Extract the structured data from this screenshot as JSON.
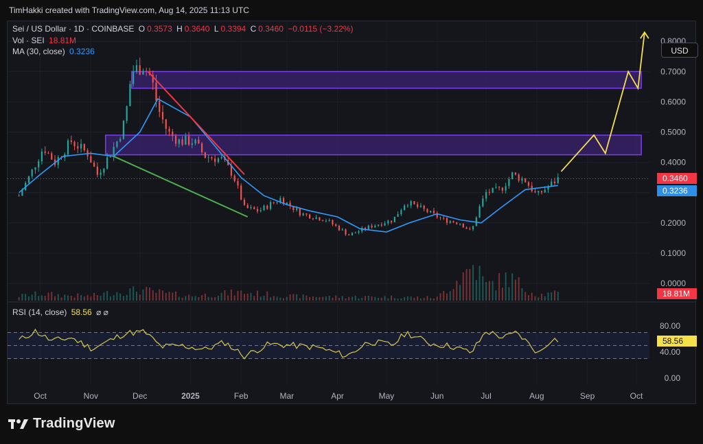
{
  "header": {
    "caption": "TimHakki created with TradingView.com, Aug 14, 2025 11:13 UTC"
  },
  "legend": {
    "symbol": "Sei / US Dollar · 1D · COINBASE",
    "open_label": "O",
    "open": "0.3573",
    "high_label": "H",
    "high": "0.3640",
    "low_label": "L",
    "low": "0.3394",
    "close_label": "C",
    "close": "0.3460",
    "change": "−0.0115 (−3.22%)",
    "vol_label": "Vol · SEI",
    "vol_value": "18.81M",
    "ma_label": "MA (30, close)",
    "ma_value": "0.3236",
    "rsi_label": "RSI (14, close)",
    "rsi_value": "58.56",
    "rsi_icons": "⌀ ⌀"
  },
  "currency_button": "USD",
  "price_tags": {
    "last_price": "0.3460",
    "ma": "0.3236",
    "volume": "18.81M",
    "rsi": "58.56"
  },
  "brand": "TradingView",
  "colors": {
    "up": "#26a69a",
    "down": "#ef5350",
    "ma": "#2e9bff",
    "rsi": "#d8c94a",
    "zone_fill": "#3b2370",
    "zone_stroke": "#7b3ff2",
    "forecast": "#f6e04a",
    "trend_red": "#f23645",
    "trend_green": "#4caf50"
  },
  "chart_data": [
    {
      "type": "candlestick",
      "title": "Sei / US Dollar · 1D · COINBASE",
      "x_axis_ticks": [
        "Oct",
        "Nov",
        "Dec",
        "2025",
        "Feb",
        "Mar",
        "Apr",
        "May",
        "Jun",
        "Jul",
        "Aug",
        "Sep",
        "Oct"
      ],
      "y_axis_ticks": [
        0.0,
        0.1,
        0.2,
        0.3,
        0.4,
        0.5,
        0.6,
        0.7,
        0.8
      ],
      "y_tick_labels": [
        "0.0000",
        "0.1000",
        "0.2000",
        "0.3000",
        "0.4000",
        "0.5000",
        "0.6000",
        "0.7000",
        "0.8000"
      ],
      "ylim": [
        0.0,
        0.8
      ],
      "close_path": [
        {
          "x": "2024-09-18",
          "y": 0.29
        },
        {
          "x": "2024-09-25",
          "y": 0.36
        },
        {
          "x": "2024-10-03",
          "y": 0.45
        },
        {
          "x": "2024-10-10",
          "y": 0.4
        },
        {
          "x": "2024-10-20",
          "y": 0.47
        },
        {
          "x": "2024-10-30",
          "y": 0.43
        },
        {
          "x": "2024-11-05",
          "y": 0.36
        },
        {
          "x": "2024-11-12",
          "y": 0.42
        },
        {
          "x": "2024-11-18",
          "y": 0.48
        },
        {
          "x": "2024-11-22",
          "y": 0.54
        },
        {
          "x": "2024-11-26",
          "y": 0.7
        },
        {
          "x": "2024-12-03",
          "y": 0.72
        },
        {
          "x": "2024-12-08",
          "y": 0.68
        },
        {
          "x": "2024-12-12",
          "y": 0.58
        },
        {
          "x": "2024-12-18",
          "y": 0.5
        },
        {
          "x": "2024-12-25",
          "y": 0.47
        },
        {
          "x": "2025-01-03",
          "y": 0.47
        },
        {
          "x": "2025-01-10",
          "y": 0.42
        },
        {
          "x": "2025-01-20",
          "y": 0.41
        },
        {
          "x": "2025-01-27",
          "y": 0.36
        },
        {
          "x": "2025-02-03",
          "y": 0.25
        },
        {
          "x": "2025-02-12",
          "y": 0.24
        },
        {
          "x": "2025-02-25",
          "y": 0.28
        },
        {
          "x": "2025-03-10",
          "y": 0.23
        },
        {
          "x": "2025-03-25",
          "y": 0.21
        },
        {
          "x": "2025-04-08",
          "y": 0.16
        },
        {
          "x": "2025-04-22",
          "y": 0.19
        },
        {
          "x": "2025-05-05",
          "y": 0.21
        },
        {
          "x": "2025-05-13",
          "y": 0.27
        },
        {
          "x": "2025-05-25",
          "y": 0.24
        },
        {
          "x": "2025-06-05",
          "y": 0.21
        },
        {
          "x": "2025-06-15",
          "y": 0.2
        },
        {
          "x": "2025-06-22",
          "y": 0.17
        },
        {
          "x": "2025-06-26",
          "y": 0.24
        },
        {
          "x": "2025-07-01",
          "y": 0.3
        },
        {
          "x": "2025-07-10",
          "y": 0.31
        },
        {
          "x": "2025-07-17",
          "y": 0.36
        },
        {
          "x": "2025-07-25",
          "y": 0.34
        },
        {
          "x": "2025-08-01",
          "y": 0.29
        },
        {
          "x": "2025-08-08",
          "y": 0.32
        },
        {
          "x": "2025-08-14",
          "y": 0.346
        }
      ],
      "series": [
        {
          "name": "MA (30, close)",
          "values": [
            {
              "x": "2024-09-18",
              "y": 0.3
            },
            {
              "x": "2024-10-01",
              "y": 0.36
            },
            {
              "x": "2024-10-15",
              "y": 0.42
            },
            {
              "x": "2024-11-01",
              "y": 0.43
            },
            {
              "x": "2024-11-15",
              "y": 0.42
            },
            {
              "x": "2024-12-01",
              "y": 0.5
            },
            {
              "x": "2024-12-12",
              "y": 0.61
            },
            {
              "x": "2025-01-01",
              "y": 0.55
            },
            {
              "x": "2025-01-15",
              "y": 0.46
            },
            {
              "x": "2025-02-01",
              "y": 0.35
            },
            {
              "x": "2025-02-15",
              "y": 0.29
            },
            {
              "x": "2025-03-01",
              "y": 0.26
            },
            {
              "x": "2025-03-15",
              "y": 0.24
            },
            {
              "x": "2025-04-01",
              "y": 0.22
            },
            {
              "x": "2025-04-15",
              "y": 0.18
            },
            {
              "x": "2025-05-01",
              "y": 0.17
            },
            {
              "x": "2025-05-15",
              "y": 0.2
            },
            {
              "x": "2025-06-01",
              "y": 0.23
            },
            {
              "x": "2025-06-15",
              "y": 0.21
            },
            {
              "x": "2025-06-28",
              "y": 0.2
            },
            {
              "x": "2025-07-10",
              "y": 0.25
            },
            {
              "x": "2025-07-25",
              "y": 0.31
            },
            {
              "x": "2025-08-14",
              "y": 0.3236
            }
          ]
        },
        {
          "name": "Vol · SEI",
          "values": [
            {
              "x": "2024-09-18",
              "y": 12
            },
            {
              "x": "2024-10-01",
              "y": 18
            },
            {
              "x": "2024-10-15",
              "y": 14
            },
            {
              "x": "2024-11-01",
              "y": 12
            },
            {
              "x": "2024-11-15",
              "y": 22
            },
            {
              "x": "2024-12-01",
              "y": 28
            },
            {
              "x": "2024-12-15",
              "y": 20
            },
            {
              "x": "2025-01-01",
              "y": 12
            },
            {
              "x": "2025-02-01",
              "y": 22
            },
            {
              "x": "2025-03-01",
              "y": 12
            },
            {
              "x": "2025-04-01",
              "y": 10
            },
            {
              "x": "2025-05-01",
              "y": 10
            },
            {
              "x": "2025-06-01",
              "y": 8
            },
            {
              "x": "2025-06-24",
              "y": 95
            },
            {
              "x": "2025-07-01",
              "y": 40
            },
            {
              "x": "2025-07-15",
              "y": 60
            },
            {
              "x": "2025-08-01",
              "y": 15
            },
            {
              "x": "2025-08-14",
              "y": 18.81
            }
          ]
        }
      ],
      "zones": [
        {
          "from": 0.645,
          "to": 0.7,
          "x_from": "2024-11-26",
          "x_to": "2025-10-04"
        },
        {
          "from": 0.425,
          "to": 0.49,
          "x_from": "2024-11-10",
          "x_to": "2025-10-04"
        }
      ],
      "trendlines": [
        {
          "color": "red",
          "from": {
            "x": "2024-12-06",
            "y": 0.7
          },
          "to": {
            "x": "2025-02-03",
            "y": 0.36
          }
        },
        {
          "color": "green",
          "from": {
            "x": "2024-11-15",
            "y": 0.42
          },
          "to": {
            "x": "2025-02-05",
            "y": 0.22
          }
        }
      ],
      "forecast_path": [
        {
          "x": "2025-08-16",
          "y": 0.37
        },
        {
          "x": "2025-09-05",
          "y": 0.49
        },
        {
          "x": "2025-09-12",
          "y": 0.43
        },
        {
          "x": "2025-09-26",
          "y": 0.7
        },
        {
          "x": "2025-10-02",
          "y": 0.645
        },
        {
          "x": "2025-10-06",
          "y": 0.83
        }
      ],
      "last_price": 0.346,
      "ma_last": 0.3236,
      "volume_last": "18.81M"
    },
    {
      "type": "line",
      "title": "RSI (14, close)",
      "y_axis_ticks": [
        0,
        40,
        80
      ],
      "y_tick_labels": [
        "0.00",
        "40.00",
        "80.00"
      ],
      "ylim": [
        0,
        100
      ],
      "bands": [
        30,
        50,
        70
      ],
      "series": [
        {
          "name": "RSI (14, close)",
          "values": [
            {
              "x": "2024-09-18",
              "y": 58
            },
            {
              "x": "2024-09-28",
              "y": 72
            },
            {
              "x": "2024-10-08",
              "y": 57
            },
            {
              "x": "2024-10-20",
              "y": 62
            },
            {
              "x": "2024-11-02",
              "y": 45
            },
            {
              "x": "2024-11-12",
              "y": 57
            },
            {
              "x": "2024-11-22",
              "y": 69
            },
            {
              "x": "2024-12-04",
              "y": 71
            },
            {
              "x": "2024-12-14",
              "y": 48
            },
            {
              "x": "2024-12-26",
              "y": 50
            },
            {
              "x": "2025-01-10",
              "y": 44
            },
            {
              "x": "2025-01-22",
              "y": 55
            },
            {
              "x": "2025-02-03",
              "y": 34
            },
            {
              "x": "2025-02-18",
              "y": 52
            },
            {
              "x": "2025-03-05",
              "y": 50
            },
            {
              "x": "2025-03-20",
              "y": 47
            },
            {
              "x": "2025-04-07",
              "y": 34
            },
            {
              "x": "2025-04-20",
              "y": 56
            },
            {
              "x": "2025-05-05",
              "y": 51
            },
            {
              "x": "2025-05-13",
              "y": 70
            },
            {
              "x": "2025-05-28",
              "y": 53
            },
            {
              "x": "2025-06-10",
              "y": 49
            },
            {
              "x": "2025-06-22",
              "y": 39
            },
            {
              "x": "2025-07-01",
              "y": 72
            },
            {
              "x": "2025-07-12",
              "y": 62
            },
            {
              "x": "2025-07-20",
              "y": 70
            },
            {
              "x": "2025-08-02",
              "y": 38
            },
            {
              "x": "2025-08-10",
              "y": 60
            },
            {
              "x": "2025-08-14",
              "y": 58.56
            }
          ]
        }
      ],
      "last_value": 58.56
    }
  ]
}
